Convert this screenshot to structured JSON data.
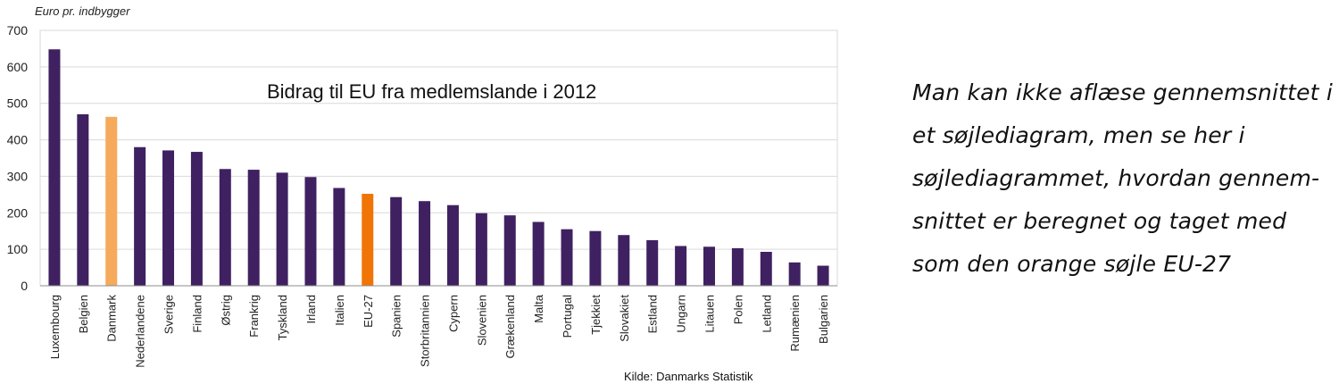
{
  "chart_data": {
    "type": "bar",
    "title": "Bidrag til EU fra medlemslande i 2012",
    "ylabel": "Euro pr. indbygger",
    "xlabel": "",
    "source": "Kilde: Danmarks Statistik",
    "ylim": [
      0,
      700
    ],
    "yticks": [
      0,
      100,
      200,
      300,
      400,
      500,
      600,
      700
    ],
    "grid": true,
    "legend": "none",
    "categories": [
      "Luxembourg",
      "Belgien",
      "Danmark",
      "Nederlandene",
      "Sverige",
      "Finland",
      "Østrig",
      "Frankrig",
      "Tyskland",
      "Irland",
      "Italien",
      "EU-27",
      "Spanien",
      "Storbritannien",
      "Cypern",
      "Slovenien",
      "Grækenland",
      "Malta",
      "Portugal",
      "Tjekkiet",
      "Slovakiet",
      "Estland",
      "Ungarn",
      "Litauen",
      "Polen",
      "Letland",
      "Rumænien",
      "Bulgarien"
    ],
    "values": [
      648,
      470,
      463,
      380,
      371,
      367,
      320,
      318,
      310,
      298,
      268,
      252,
      243,
      232,
      221,
      199,
      193,
      175,
      155,
      150,
      139,
      125,
      109,
      107,
      103,
      93,
      64,
      55
    ],
    "colors": {
      "default": "#3f2161",
      "highlight": "#f5aa5c",
      "average": "#f07406",
      "grid": "#d9d9d9",
      "axis": "#8c8c8c"
    },
    "highlight_category": "Danmark",
    "average_category": "EU-27"
  },
  "note": {
    "lines": [
      "Man kan ikke aflæse gennemsnittet i",
      "et søjlediagram, men se her i",
      "søjlediagrammet, hvordan gennem-",
      "snittet er beregnet og taget med",
      "som den orange søjle EU-27"
    ]
  }
}
